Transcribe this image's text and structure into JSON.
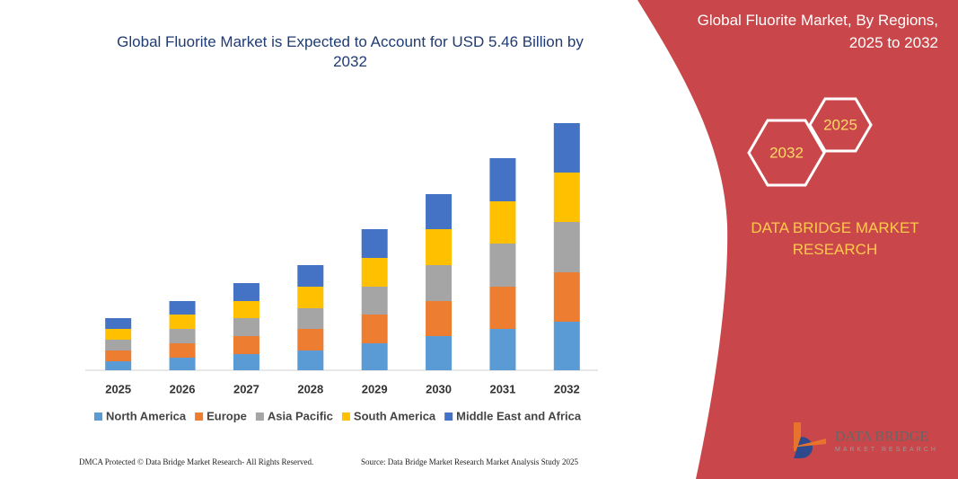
{
  "chart_data": {
    "type": "bar",
    "stacked": true,
    "title": "Global Fluorite Market is Expected to Account for USD 5.46 Billion by 2032",
    "categories": [
      "2025",
      "2026",
      "2027",
      "2028",
      "2029",
      "2030",
      "2031",
      "2032"
    ],
    "series": [
      {
        "name": "North America",
        "color": "#5b9bd5",
        "values": [
          10,
          14,
          18,
          22,
          30,
          38,
          46,
          54
        ]
      },
      {
        "name": "Europe",
        "color": "#ed7d31",
        "values": [
          12,
          16,
          20,
          24,
          32,
          39,
          47,
          55
        ]
      },
      {
        "name": "Asia Pacific",
        "color": "#a5a5a5",
        "values": [
          12,
          16,
          20,
          23,
          31,
          40,
          48,
          56
        ]
      },
      {
        "name": "South America",
        "color": "#ffc000",
        "values": [
          12,
          16,
          19,
          24,
          32,
          40,
          47,
          55
        ]
      },
      {
        "name": "Middle East and Africa",
        "color": "#4472c4",
        "values": [
          12,
          15,
          20,
          24,
          32,
          39,
          48,
          55
        ]
      }
    ]
  },
  "panel": {
    "title": "Global Fluorite Market, By Regions, 2025 to 2032",
    "badges": [
      "2025",
      "2032"
    ],
    "brand": "DATA BRIDGE MARKET RESEARCH"
  },
  "logo": {
    "name": "DATA BRIDGE",
    "tagline": "MARKET RESEARCH"
  },
  "footer": {
    "left": "DMCA Protected © Data Bridge Market Research- All Rights Reserved.",
    "right": "Source: Data Bridge Market Research Market Analysis Study 2025"
  }
}
